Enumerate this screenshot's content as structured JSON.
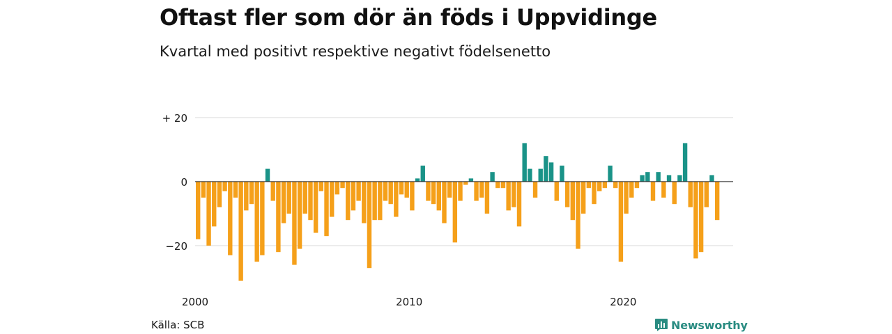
{
  "title": "Oftast fler som dör än föds i Uppvidinge",
  "subtitle": "Kvartal med positivt respektive negativt födelsenetto",
  "source": "Källa: SCB",
  "logo_text": "Newsworthy",
  "logo_icon": "newsworthy-chart-bubble-icon",
  "colors": {
    "positive": "#1a9388",
    "negative": "#f5a01a",
    "grid": "#d9d9d9",
    "zero_line": "#333333",
    "logo": "#2a8c82"
  },
  "chart_data": {
    "type": "bar",
    "title": "Oftast fler som dör än föds i Uppvidinge",
    "subtitle": "Kvartal med positivt respektive negativt födelsenetto",
    "xlabel": "",
    "ylabel": "",
    "x_start_year": 2000,
    "periods_per_year": 4,
    "ylim": [
      -33,
      20
    ],
    "y_ticks": [
      {
        "value": 20,
        "label": "+ 20"
      },
      {
        "value": 0,
        "label": "0"
      },
      {
        "value": -20,
        "label": "−20"
      }
    ],
    "x_tick_labels": [
      "2000",
      "2010",
      "2020"
    ],
    "grid": true,
    "values": [
      -18,
      -5,
      -20,
      -14,
      -8,
      -3,
      -23,
      -5,
      -31,
      -9,
      -7,
      -25,
      -23,
      4,
      -6,
      -22,
      -13,
      -10,
      -26,
      -21,
      -10,
      -12,
      -16,
      -3,
      -17,
      -11,
      -4,
      -2,
      -12,
      -9,
      -6,
      -13,
      -27,
      -12,
      -12,
      -6,
      -7,
      -11,
      -4,
      -5,
      -9,
      1,
      5,
      -6,
      -7,
      -9,
      -13,
      -5,
      -19,
      -6,
      -1,
      1,
      -6,
      -5,
      -10,
      3,
      -2,
      -2,
      -9,
      -8,
      -14,
      12,
      4,
      -5,
      4,
      8,
      6,
      -6,
      5,
      -8,
      -12,
      -21,
      -10,
      -2,
      -7,
      -3,
      -2,
      5,
      -2,
      -25,
      -10,
      -5,
      -2,
      2,
      3,
      -6,
      3,
      -5,
      2,
      -7,
      2,
      12,
      -8,
      -24,
      -22,
      -8,
      2,
      -12
    ]
  }
}
